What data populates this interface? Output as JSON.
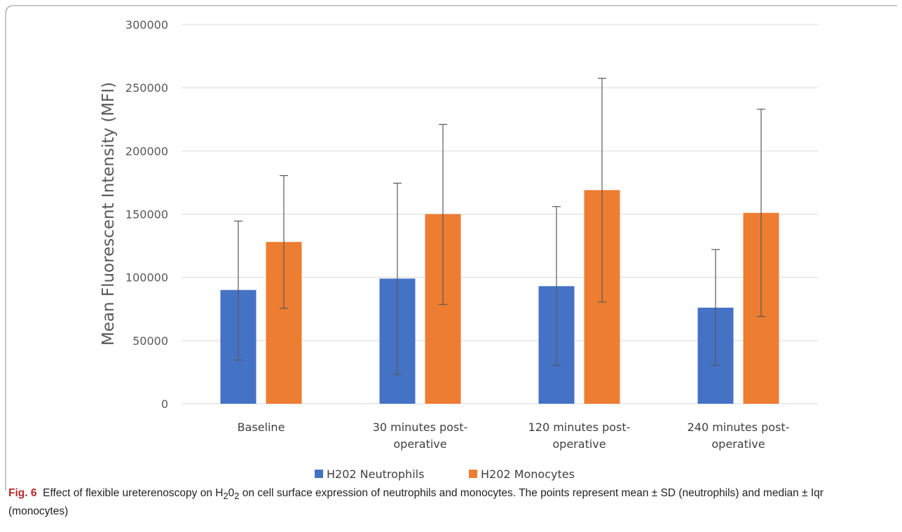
{
  "chart_data": {
    "type": "bar",
    "title": "",
    "xlabel": "",
    "ylabel": "Mean Fluorescent Intensity (MFI)",
    "ylim": [
      0,
      300000
    ],
    "yticks": [
      0,
      50000,
      100000,
      150000,
      200000,
      250000,
      300000
    ],
    "ytick_labels": [
      "0",
      "50000",
      "100000",
      "150000",
      "200000",
      "250000",
      "300000"
    ],
    "grid": true,
    "legend_position": "bottom",
    "categories": [
      [
        "Baseline"
      ],
      [
        "30 minutes post-",
        "operative"
      ],
      [
        "120 minutes post-",
        "operative"
      ],
      [
        "240 minutes post-",
        "operative"
      ]
    ],
    "series": [
      {
        "name": "H202 Neutrophils",
        "color": "#4472c4",
        "values": [
          90000,
          99000,
          93000,
          76000
        ],
        "error_low": [
          34500,
          23000,
          30500,
          30500
        ],
        "error_high": [
          144500,
          174500,
          156000,
          122000
        ]
      },
      {
        "name": "H202 Monocytes",
        "color": "#ed7d31",
        "values": [
          128000,
          150000,
          169000,
          151000
        ],
        "error_low": [
          75500,
          78500,
          80500,
          69000
        ],
        "error_high": [
          180500,
          221000,
          257500,
          233000
        ]
      }
    ]
  },
  "caption": {
    "figure_label": "Fig. 6",
    "text_before": "Effect of flexible ureterenoscopy on H",
    "sub1": "2",
    "text_mid": "0",
    "sub2": "2",
    "text_after": " on cell surface expression of neutrophils and monocytes. The points represent mean ± SD (neutrophils) and median ± Iqr (monocytes)"
  },
  "colors": {
    "gridline": "#d9d9d9",
    "error_bar": "#595959",
    "frame": "#8c8c8c"
  }
}
